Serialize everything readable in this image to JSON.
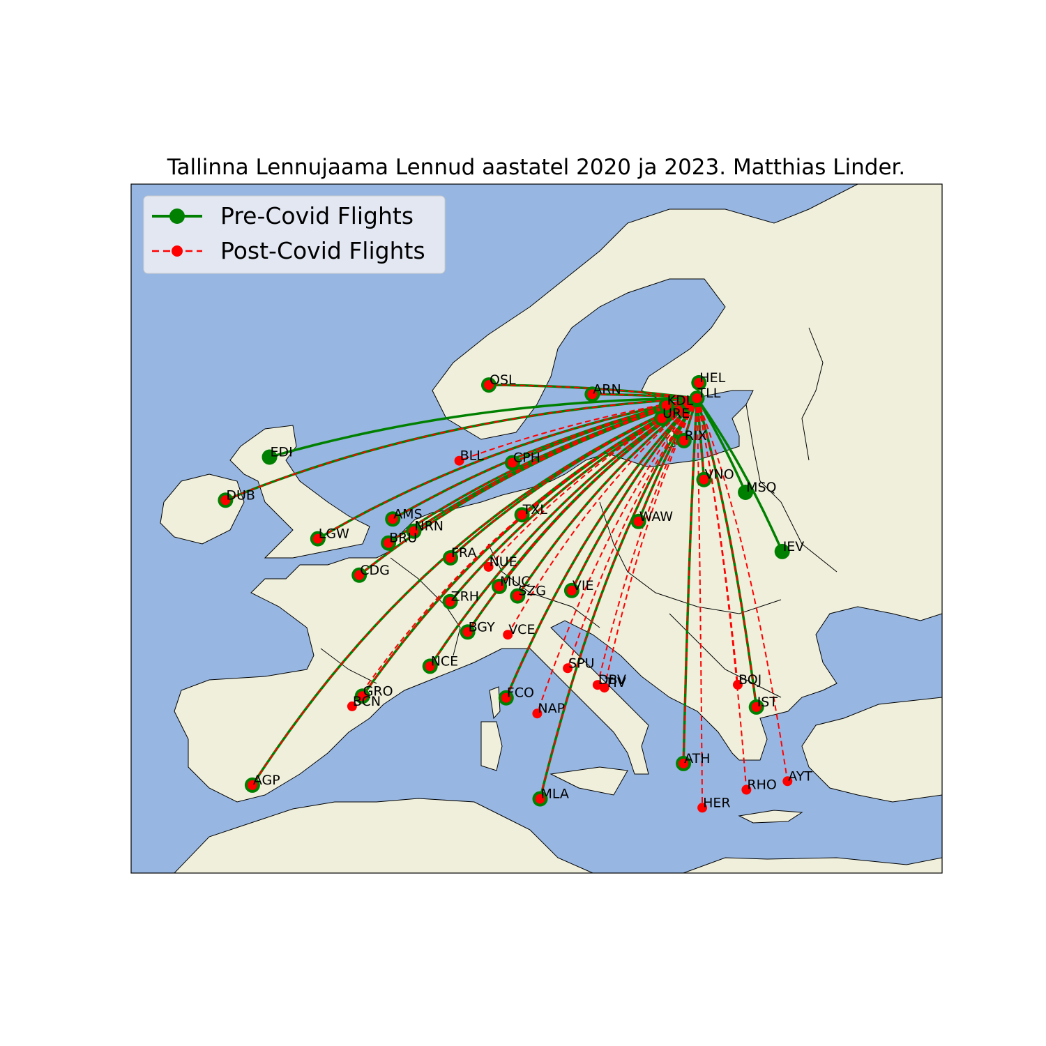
{
  "title": "Tallinna Lennujaama Lennud aastatel 2020 ja 2023. Matthias Linder.",
  "colors": {
    "ocean": "#97b6e1",
    "land": "#efefdb",
    "coastline": "#000000",
    "rivers": "#97b6e1",
    "pre_covid": "#008000",
    "post_covid": "#ff0000"
  },
  "legend": {
    "pre_label": "Pre-Covid Flights",
    "post_label": "Post-Covid Flights",
    "placement": "upper-left"
  },
  "map": {
    "type": "route-map",
    "region": "Europe",
    "projection": "PlateCarree",
    "lon_range": [
      -12.5,
      41
    ],
    "lat_range": [
      31.5,
      72
    ]
  },
  "hub": {
    "code": "TLL",
    "lon": 24.83,
    "lat": 59.41
  },
  "airports": [
    {
      "code": "HEL",
      "lon": 24.96,
      "lat": 60.32,
      "pre": true,
      "post": true
    },
    {
      "code": "KDL",
      "lon": 22.81,
      "lat": 58.99,
      "pre": true,
      "post": true
    },
    {
      "code": "URE",
      "lon": 22.51,
      "lat": 58.23,
      "pre": true,
      "post": true
    },
    {
      "code": "ARN",
      "lon": 17.92,
      "lat": 59.65,
      "pre": true,
      "post": true
    },
    {
      "code": "OSL",
      "lon": 11.1,
      "lat": 60.19,
      "pre": true,
      "post": true
    },
    {
      "code": "RIX",
      "lon": 23.97,
      "lat": 56.92,
      "pre": true,
      "post": true
    },
    {
      "code": "VNO",
      "lon": 25.29,
      "lat": 54.63,
      "pre": true,
      "post": true
    },
    {
      "code": "MSQ",
      "lon": 28.03,
      "lat": 53.88,
      "pre": true,
      "post": false
    },
    {
      "code": "IEV",
      "lon": 30.45,
      "lat": 50.4,
      "pre": true,
      "post": false
    },
    {
      "code": "EDI",
      "lon": -3.37,
      "lat": 55.95,
      "pre": true,
      "post": false
    },
    {
      "code": "DUB",
      "lon": -6.27,
      "lat": 53.42,
      "pre": true,
      "post": true
    },
    {
      "code": "LGW",
      "lon": -0.18,
      "lat": 51.15,
      "pre": true,
      "post": true
    },
    {
      "code": "BLL",
      "lon": 9.15,
      "lat": 55.74,
      "pre": false,
      "post": true
    },
    {
      "code": "CPH",
      "lon": 12.66,
      "lat": 55.62,
      "pre": true,
      "post": true
    },
    {
      "code": "AMS",
      "lon": 4.76,
      "lat": 52.31,
      "pre": true,
      "post": true
    },
    {
      "code": "NRN",
      "lon": 6.15,
      "lat": 51.6,
      "pre": true,
      "post": true
    },
    {
      "code": "BRU",
      "lon": 4.48,
      "lat": 50.9,
      "pre": true,
      "post": true
    },
    {
      "code": "TXL",
      "lon": 13.29,
      "lat": 52.56,
      "pre": true,
      "post": true
    },
    {
      "code": "WAW",
      "lon": 20.97,
      "lat": 52.17,
      "pre": true,
      "post": true
    },
    {
      "code": "CDG",
      "lon": 2.55,
      "lat": 49.01,
      "pre": true,
      "post": true
    },
    {
      "code": "FRA",
      "lon": 8.57,
      "lat": 50.03,
      "pre": true,
      "post": true
    },
    {
      "code": "NUE",
      "lon": 11.08,
      "lat": 49.5,
      "pre": false,
      "post": true
    },
    {
      "code": "MUC",
      "lon": 11.79,
      "lat": 48.35,
      "pre": true,
      "post": true
    },
    {
      "code": "SZG",
      "lon": 13.0,
      "lat": 47.79,
      "pre": true,
      "post": true
    },
    {
      "code": "VIE",
      "lon": 16.57,
      "lat": 48.11,
      "pre": true,
      "post": true
    },
    {
      "code": "ZRH",
      "lon": 8.55,
      "lat": 47.46,
      "pre": true,
      "post": true
    },
    {
      "code": "BGY",
      "lon": 9.7,
      "lat": 45.67,
      "pre": true,
      "post": true
    },
    {
      "code": "VCE",
      "lon": 12.35,
      "lat": 45.51,
      "pre": false,
      "post": true
    },
    {
      "code": "NCE",
      "lon": 7.22,
      "lat": 43.66,
      "pre": true,
      "post": true
    },
    {
      "code": "GRO",
      "lon": 2.76,
      "lat": 41.9,
      "pre": true,
      "post": true
    },
    {
      "code": "BCN",
      "lon": 2.08,
      "lat": 41.3,
      "pre": false,
      "post": true
    },
    {
      "code": "SPU",
      "lon": 16.3,
      "lat": 43.54,
      "pre": false,
      "post": true
    },
    {
      "code": "DBV",
      "lon": 18.27,
      "lat": 42.56,
      "pre": false,
      "post": true
    },
    {
      "code": "TIV",
      "lon": 18.72,
      "lat": 42.4,
      "pre": false,
      "post": true
    },
    {
      "code": "FCO",
      "lon": 12.24,
      "lat": 41.8,
      "pre": true,
      "post": true
    },
    {
      "code": "NAP",
      "lon": 14.29,
      "lat": 40.88,
      "pre": false,
      "post": true
    },
    {
      "code": "BOJ",
      "lon": 27.52,
      "lat": 42.57,
      "pre": false,
      "post": true
    },
    {
      "code": "IST",
      "lon": 28.75,
      "lat": 41.26,
      "pre": true,
      "post": true
    },
    {
      "code": "ATH",
      "lon": 23.94,
      "lat": 37.94,
      "pre": true,
      "post": true
    },
    {
      "code": "AGP",
      "lon": -4.5,
      "lat": 36.67,
      "pre": true,
      "post": true
    },
    {
      "code": "MLA",
      "lon": 14.48,
      "lat": 35.86,
      "pre": true,
      "post": true
    },
    {
      "code": "RHO",
      "lon": 28.09,
      "lat": 36.4,
      "pre": false,
      "post": true
    },
    {
      "code": "AYT",
      "lon": 30.8,
      "lat": 36.9,
      "pre": false,
      "post": true
    },
    {
      "code": "HER",
      "lon": 25.18,
      "lat": 35.34,
      "pre": false,
      "post": true
    }
  ]
}
